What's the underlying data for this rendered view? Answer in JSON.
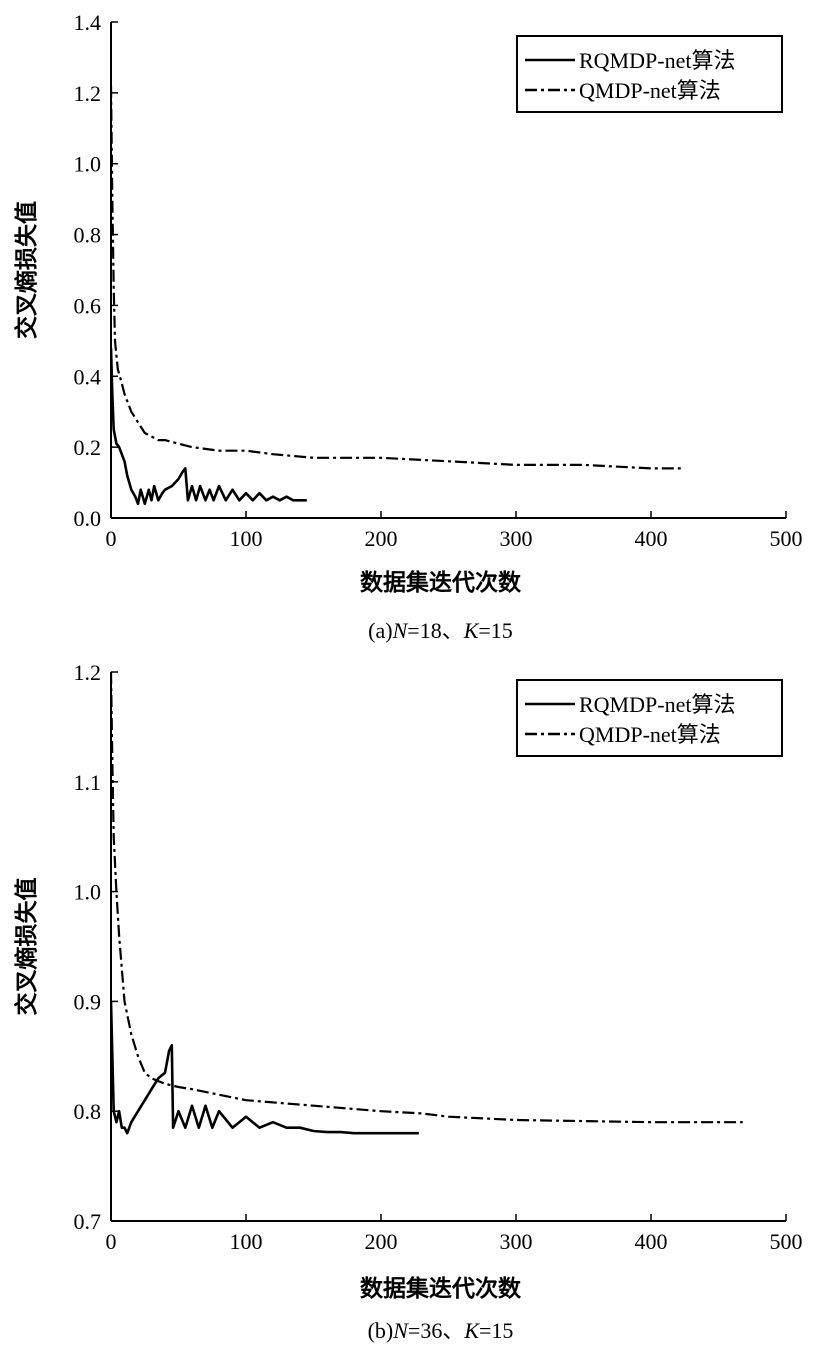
{
  "chart_data": [
    {
      "type": "line",
      "panel": "a",
      "caption": "(a)N=18、K=15",
      "caption_parts": [
        "(a)",
        "N",
        "=18、",
        "K",
        "=15"
      ],
      "xlabel": "数据集迭代次数",
      "ylabel": "交叉熵损失值",
      "xlim": [
        0,
        500
      ],
      "ylim": [
        0,
        1.4
      ],
      "xticks": [
        0,
        100,
        200,
        300,
        400,
        500
      ],
      "xtick_labels": [
        "0",
        "100",
        "200",
        "300",
        "400",
        "500"
      ],
      "yticks": [
        0.0,
        0.2,
        0.4,
        0.6,
        0.8,
        1.0,
        1.2,
        1.4
      ],
      "ytick_labels": [
        "0.0",
        "0.2",
        "0.4",
        "0.6",
        "0.8",
        "1.0",
        "1.2",
        "1.4"
      ],
      "grid": false,
      "legend_position": "top-right",
      "series": [
        {
          "name": "RQMDP-net算法",
          "style": "solid",
          "x": [
            0,
            1,
            2,
            4,
            6,
            8,
            10,
            12,
            15,
            18,
            20,
            22,
            25,
            28,
            30,
            32,
            35,
            38,
            40,
            45,
            50,
            53,
            55,
            57,
            60,
            63,
            66,
            70,
            73,
            76,
            80,
            85,
            90,
            95,
            100,
            105,
            110,
            115,
            120,
            125,
            130,
            135,
            140,
            145
          ],
          "y": [
            0.48,
            0.35,
            0.25,
            0.21,
            0.2,
            0.18,
            0.16,
            0.12,
            0.08,
            0.06,
            0.04,
            0.08,
            0.04,
            0.08,
            0.05,
            0.09,
            0.05,
            0.07,
            0.08,
            0.09,
            0.11,
            0.13,
            0.14,
            0.05,
            0.09,
            0.05,
            0.09,
            0.05,
            0.08,
            0.05,
            0.09,
            0.05,
            0.08,
            0.05,
            0.07,
            0.05,
            0.07,
            0.05,
            0.06,
            0.05,
            0.06,
            0.05,
            0.05,
            0.05
          ]
        },
        {
          "name": "QMDP-net算法",
          "style": "dashdot",
          "x": [
            0,
            1,
            2,
            3,
            5,
            8,
            10,
            15,
            20,
            25,
            30,
            35,
            40,
            50,
            60,
            80,
            100,
            120,
            150,
            200,
            250,
            300,
            350,
            400,
            425
          ],
          "y": [
            1.22,
            0.9,
            0.65,
            0.5,
            0.42,
            0.38,
            0.35,
            0.3,
            0.27,
            0.24,
            0.23,
            0.22,
            0.22,
            0.21,
            0.2,
            0.19,
            0.19,
            0.18,
            0.17,
            0.17,
            0.16,
            0.15,
            0.15,
            0.14,
            0.14
          ]
        }
      ]
    },
    {
      "type": "line",
      "panel": "b",
      "caption": "(b)N=36、K=15",
      "caption_parts": [
        "(b)",
        "N",
        "=36、",
        "K",
        "=15"
      ],
      "xlabel": "数据集迭代次数",
      "ylabel": "交叉熵损失值",
      "xlim": [
        0,
        500
      ],
      "ylim": [
        0.7,
        1.2
      ],
      "xticks": [
        0,
        100,
        200,
        300,
        400,
        500
      ],
      "xtick_labels": [
        "0",
        "100",
        "200",
        "300",
        "400",
        "500"
      ],
      "yticks": [
        0.7,
        0.8,
        0.9,
        1.0,
        1.1,
        1.2
      ],
      "ytick_labels": [
        "0.7",
        "0.8",
        "0.9",
        "1.0",
        "1.1",
        "1.2"
      ],
      "grid": false,
      "legend_position": "top-right",
      "series": [
        {
          "name": "RQMDP-net算法",
          "style": "solid",
          "x": [
            0,
            2,
            4,
            6,
            8,
            10,
            12,
            15,
            20,
            25,
            30,
            35,
            40,
            43,
            45,
            46,
            50,
            55,
            60,
            65,
            70,
            75,
            80,
            90,
            100,
            110,
            120,
            130,
            140,
            150,
            160,
            170,
            180,
            190,
            200,
            210,
            220,
            228
          ],
          "y": [
            0.9,
            0.8,
            0.79,
            0.8,
            0.785,
            0.785,
            0.78,
            0.79,
            0.8,
            0.81,
            0.82,
            0.83,
            0.835,
            0.855,
            0.86,
            0.785,
            0.8,
            0.785,
            0.805,
            0.785,
            0.805,
            0.785,
            0.8,
            0.785,
            0.795,
            0.785,
            0.79,
            0.785,
            0.785,
            0.782,
            0.781,
            0.781,
            0.78,
            0.78,
            0.78,
            0.78,
            0.78,
            0.78
          ]
        },
        {
          "name": "QMDP-net算法",
          "style": "dashdot",
          "x": [
            0,
            1,
            2,
            4,
            6,
            8,
            10,
            15,
            20,
            25,
            30,
            40,
            50,
            60,
            80,
            100,
            150,
            200,
            230,
            250,
            300,
            350,
            400,
            468
          ],
          "y": [
            1.2,
            1.12,
            1.05,
            1.0,
            0.96,
            0.93,
            0.9,
            0.87,
            0.85,
            0.835,
            0.83,
            0.825,
            0.822,
            0.82,
            0.815,
            0.81,
            0.805,
            0.8,
            0.798,
            0.795,
            0.792,
            0.791,
            0.79,
            0.79
          ]
        }
      ]
    }
  ]
}
